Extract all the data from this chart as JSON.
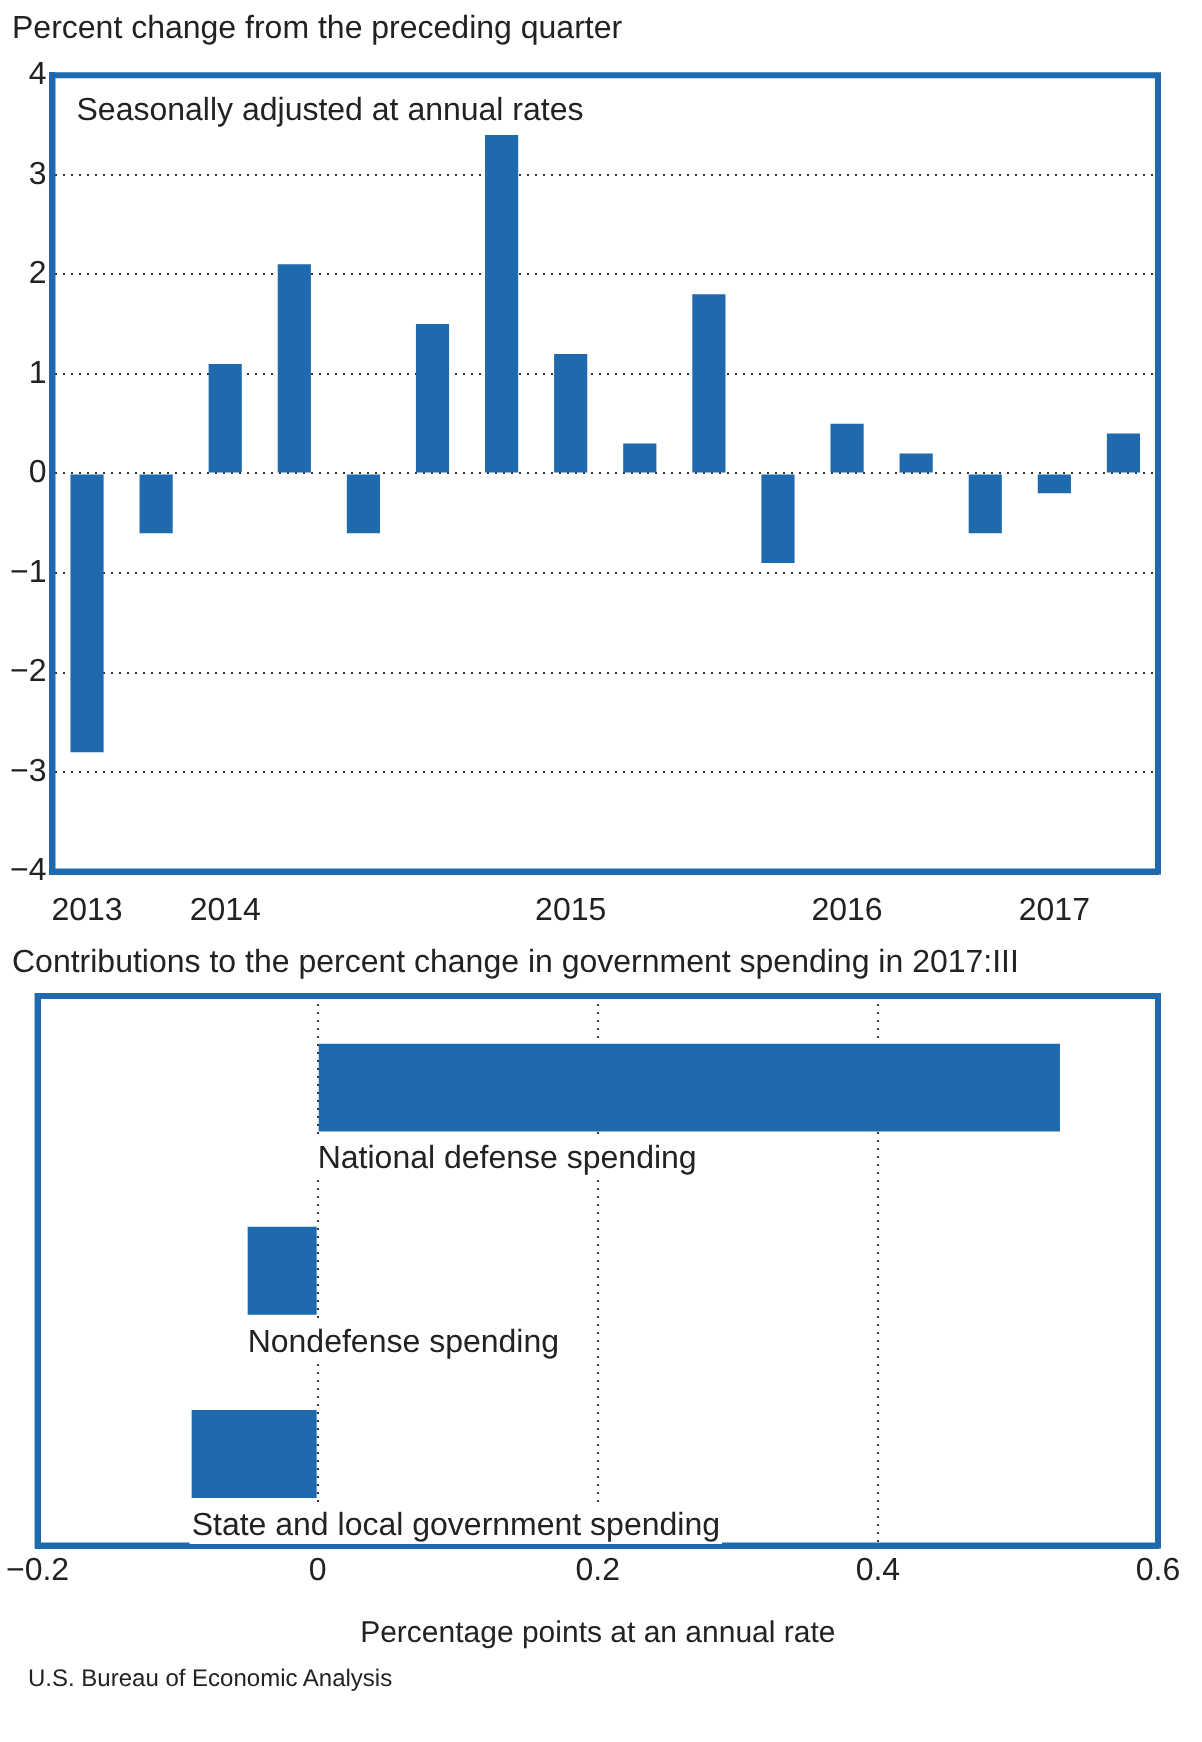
{
  "chart_data": [
    {
      "type": "bar",
      "title": "Percent change from the preceding quarter",
      "annotations": [
        "Seasonally adjusted at annual rates"
      ],
      "categories": [
        "2013",
        null,
        "2014",
        null,
        null,
        null,
        null,
        "2015",
        null,
        null,
        null,
        "2016",
        null,
        null,
        "2017",
        null
      ],
      "values": [
        -2.8,
        -0.6,
        1.1,
        2.1,
        -0.6,
        1.5,
        3.4,
        1.2,
        0.3,
        1.8,
        -0.9,
        0.5,
        0.2,
        -0.6,
        -0.2,
        0.4
      ],
      "color": "#1f6aad",
      "ylim": [
        -4,
        4
      ],
      "yticks": [
        {
          "value": -4,
          "label": "−4"
        },
        {
          "value": -3,
          "label": "−3"
        },
        {
          "value": -2,
          "label": "−2"
        },
        {
          "value": -1,
          "label": "−1"
        },
        0,
        1,
        2,
        3,
        4
      ],
      "grid": "y"
    },
    {
      "type": "bar",
      "orientation": "horizontal",
      "title": "Contributions to the percent change in government spending in 2017:III",
      "xlabel": "Percentage points at an annual rate",
      "annotations": [
        "U.S. Bureau of Economic Analysis"
      ],
      "categories": [
        "National defense spending",
        "Nondefense spending",
        "State and local government spending"
      ],
      "values": [
        0.53,
        -0.05,
        -0.09
      ],
      "color": "#1f6aad",
      "xlim": [
        -0.2,
        0.6
      ],
      "xticks": [
        {
          "value": -0.2,
          "label": "−0.2"
        },
        0,
        0.2,
        0.4,
        0.6
      ],
      "grid": "x"
    }
  ]
}
